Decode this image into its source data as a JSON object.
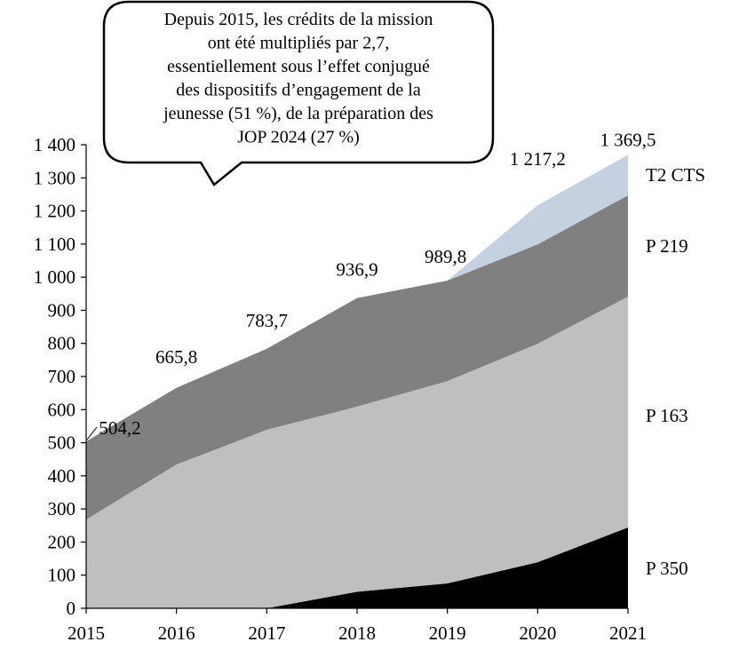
{
  "chart_data": {
    "type": "area",
    "stacked": true,
    "x": [
      "2015",
      "2016",
      "2017",
      "2018",
      "2019",
      "2020",
      "2021"
    ],
    "ylim": [
      0,
      1400
    ],
    "yticks": [
      "0",
      "100",
      "200",
      "300",
      "400",
      "500",
      "600",
      "700",
      "800",
      "900",
      "1 000",
      "1 100",
      "1 200",
      "1 300",
      "1 400"
    ],
    "grid": false,
    "series": [
      {
        "name": "P 350",
        "color": "#000000",
        "values": [
          0,
          0,
          0,
          50,
          75,
          139,
          244
        ]
      },
      {
        "name": "P 163",
        "color": "#bfbfbf",
        "values": [
          268,
          434,
          539,
          559,
          611,
          660,
          697
        ]
      },
      {
        "name": "P 219",
        "color": "#808080",
        "values": [
          236.2,
          231.8,
          244.7,
          327.9,
          303.8,
          300,
          306
        ]
      },
      {
        "name": "T2 CTS",
        "color": "#c5d0e0",
        "values": [
          0,
          0,
          0,
          0,
          0,
          118.2,
          122.5
        ]
      }
    ],
    "total_labels": [
      "504,2",
      "665,8",
      "783,7",
      "936,9",
      "989,8",
      "1 217,2",
      "1 369,5"
    ],
    "callout": [
      "Depuis 2015, les crédits de la mission",
      "ont été multipliés par 2,7,",
      "essentiellement sous l’effet conjugué",
      "des dispositifs d’engagement de la",
      "jeunesse (51 %), de la préparation des",
      "JOP 2024 (27 %)"
    ]
  }
}
